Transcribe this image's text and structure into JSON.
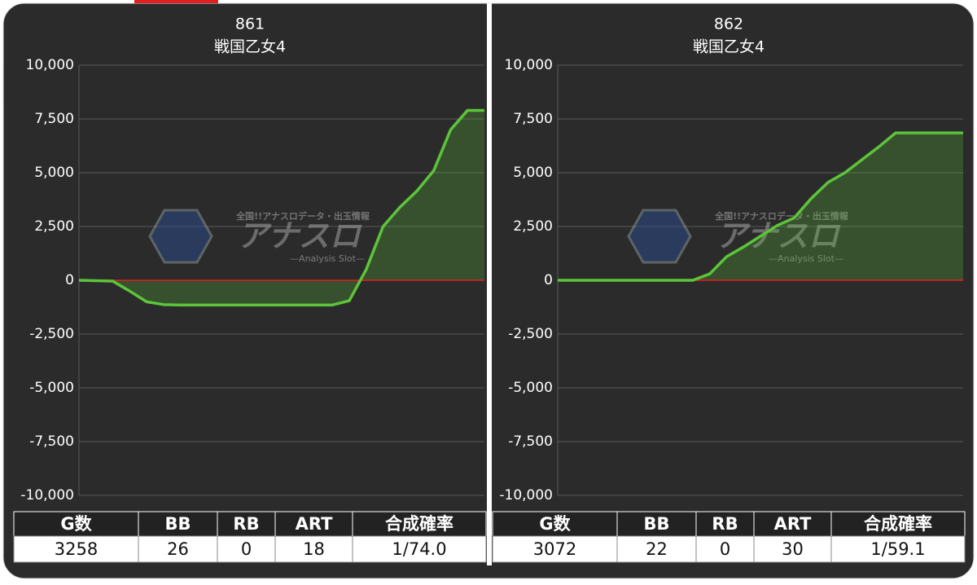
{
  "chart_data": [
    {
      "type": "line",
      "title": "861",
      "subtitle": "戦国乙女4",
      "values": [
        0,
        -20,
        -40,
        -500,
        -1000,
        -1130,
        -1150,
        -1150,
        -1150,
        -1150,
        -1150,
        -1150,
        -1150,
        -1150,
        -1150,
        -1150,
        -950,
        500,
        2500,
        3400,
        4150,
        5100,
        7000,
        7900,
        7900
      ],
      "color": "#5cc43a",
      "zero_line_color": "#e02020",
      "ylim": [
        -10000,
        10000
      ],
      "yticks": [
        {
          "value": -10000,
          "label": "-10,000"
        },
        {
          "value": -7500,
          "label": "-7,500"
        },
        {
          "value": -5000,
          "label": "-5,000"
        },
        {
          "value": -2500,
          "label": "-2,500"
        },
        0,
        {
          "value": 2500,
          "label": "2,500"
        },
        {
          "value": 5000,
          "label": "5,000"
        },
        {
          "value": 7500,
          "label": "7,500"
        },
        {
          "value": 10000,
          "label": "10,000"
        }
      ],
      "grid": true
    },
    {
      "type": "line",
      "title": "862",
      "subtitle": "戦国乙女4",
      "values": [
        0,
        0,
        0,
        0,
        0,
        0,
        0,
        0,
        0,
        300,
        1100,
        1550,
        2050,
        2550,
        2900,
        3800,
        4550,
        5000,
        5600,
        6200,
        6850,
        6850,
        6850,
        6850,
        6850
      ],
      "color": "#5cc43a",
      "zero_line_color": "#e02020",
      "ylim": [
        -10000,
        10000
      ],
      "yticks": [
        {
          "value": -10000,
          "label": "-10,000"
        },
        {
          "value": -7500,
          "label": "-7,500"
        },
        {
          "value": -5000,
          "label": "-5,000"
        },
        {
          "value": -2500,
          "label": "-2,500"
        },
        0,
        {
          "value": 2500,
          "label": "2,500"
        },
        {
          "value": 5000,
          "label": "5,000"
        },
        {
          "value": 7500,
          "label": "7,500"
        },
        {
          "value": 10000,
          "label": "10,000"
        }
      ],
      "grid": true
    }
  ],
  "tables": [
    {
      "header": [
        "G数",
        "BB",
        "RB",
        "ART",
        "合成確率"
      ],
      "row": [
        3258,
        26,
        0,
        18,
        "1/74.0"
      ]
    },
    {
      "header": [
        "G数",
        "BB",
        "RB",
        "ART",
        "合成確率"
      ],
      "row": [
        3072,
        22,
        0,
        30,
        "1/59.1"
      ]
    }
  ],
  "watermark": {
    "tagline": "全国!!アナスロデータ・出玉情報",
    "logo": "アナスロ",
    "sub": "—Analysis Slot—"
  }
}
